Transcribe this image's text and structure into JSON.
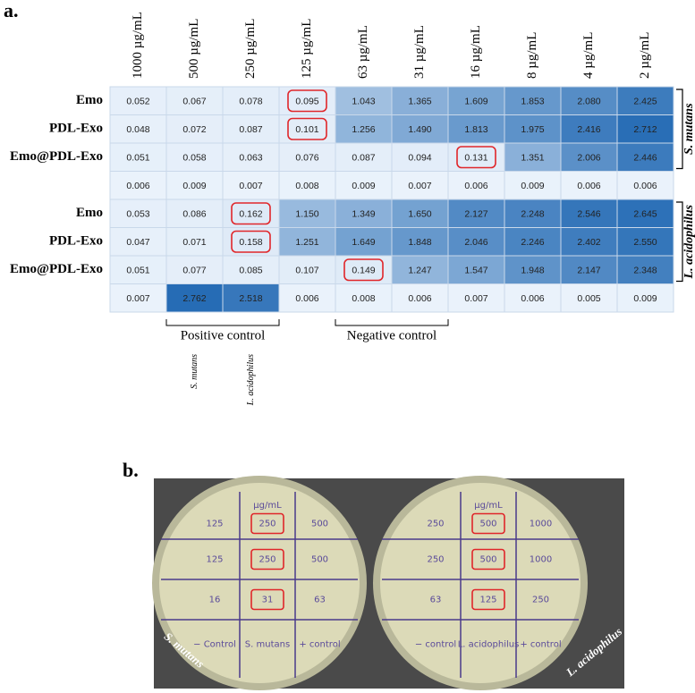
{
  "panel_a": {
    "label": "a.",
    "columns": [
      "1000 µg/mL",
      "500 µg/mL",
      "250 µg/mL",
      "125 µg/mL",
      "63 µg/mL",
      "31 µg/mL",
      "16 µg/mL",
      "8 µg/mL",
      "4 µg/mL",
      "2 µg/mL"
    ],
    "rows": [
      {
        "label": "Emo",
        "values": [
          "0.052",
          "0.067",
          "0.078",
          "0.095",
          "1.043",
          "1.365",
          "1.609",
          "1.853",
          "2.080",
          "2.425"
        ]
      },
      {
        "label": "PDL-Exo",
        "values": [
          "0.048",
          "0.072",
          "0.087",
          "0.101",
          "1.256",
          "1.490",
          "1.813",
          "1.975",
          "2.416",
          "2.712"
        ]
      },
      {
        "label": "Emo@PDL-Exo",
        "values": [
          "0.051",
          "0.058",
          "0.063",
          "0.076",
          "0.087",
          "0.094",
          "0.131",
          "1.351",
          "2.006",
          "2.446"
        ]
      },
      {
        "label": null,
        "values": [
          "0.006",
          "0.009",
          "0.007",
          "0.008",
          "0.009",
          "0.007",
          "0.006",
          "0.009",
          "0.006",
          "0.006"
        ]
      },
      {
        "label": "Emo",
        "values": [
          "0.053",
          "0.086",
          "0.162",
          "1.150",
          "1.349",
          "1.650",
          "2.127",
          "2.248",
          "2.546",
          "2.645"
        ]
      },
      {
        "label": "PDL-Exo",
        "values": [
          "0.047",
          "0.071",
          "0.158",
          "1.251",
          "1.649",
          "1.848",
          "2.046",
          "2.246",
          "2.402",
          "2.550"
        ]
      },
      {
        "label": "Emo@PDL-Exo",
        "values": [
          "0.051",
          "0.077",
          "0.085",
          "0.107",
          "0.149",
          "1.247",
          "1.547",
          "1.948",
          "2.147",
          "2.348"
        ]
      },
      {
        "label": null,
        "values": [
          "0.007",
          "2.762",
          "2.518",
          "0.006",
          "0.008",
          "0.006",
          "0.007",
          "0.006",
          "0.005",
          "0.009"
        ]
      }
    ],
    "groups": [
      "S. mutans",
      "L. acidophilus"
    ],
    "controls": [
      "Positive control",
      "Negative control"
    ],
    "control_species": [
      "S. mutans",
      "L. acidophilus"
    ]
  },
  "panel_b": {
    "label": "b.",
    "plates": [
      {
        "unit": "µg/mL",
        "species": "S. mutans",
        "cells": [
          [
            "125",
            "250",
            "500"
          ],
          [
            "125",
            "250",
            "500"
          ],
          [
            "16",
            "31",
            "63"
          ],
          [
            "− Control",
            "S. mutans",
            "+ control"
          ]
        ]
      },
      {
        "unit": "µg/mL",
        "species": "L. acidophilus",
        "cells": [
          [
            "250",
            "500",
            "1000"
          ],
          [
            "250",
            "500",
            "1000"
          ],
          [
            "63",
            "125",
            "250"
          ],
          [
            "− control",
            "L. acidophilus",
            "+ control"
          ]
        ]
      }
    ]
  }
}
